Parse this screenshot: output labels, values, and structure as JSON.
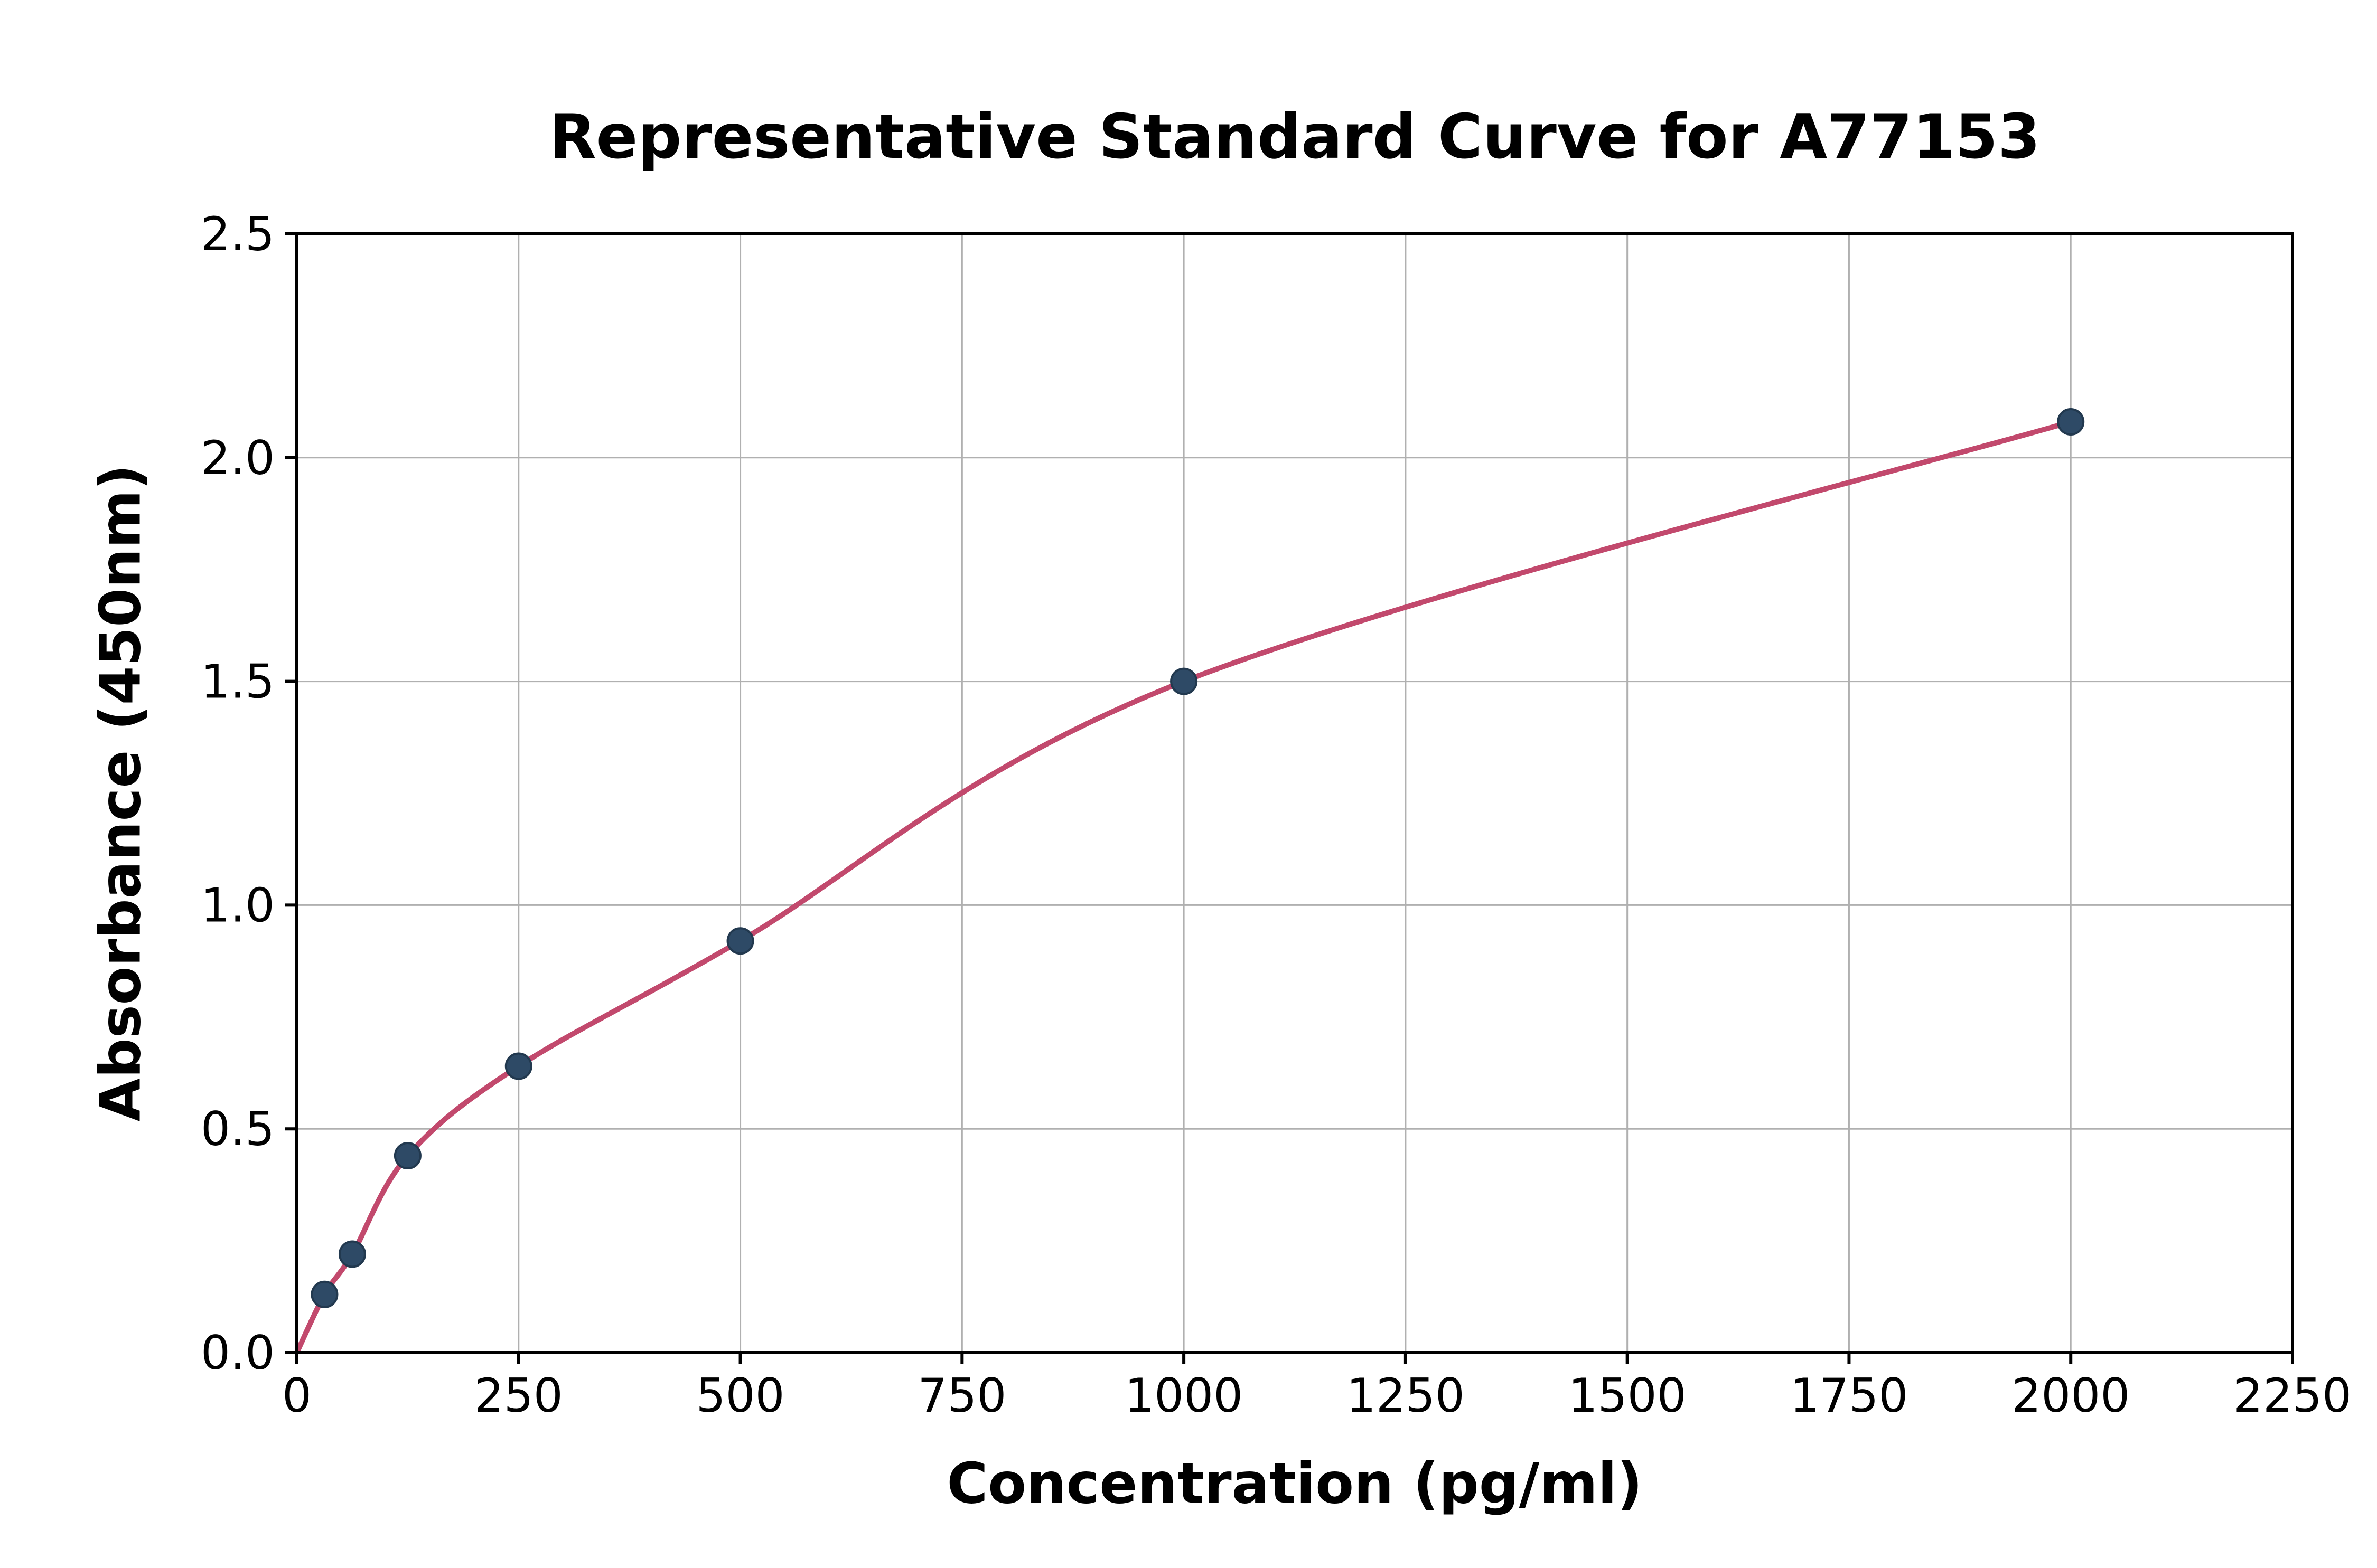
{
  "chart_data": {
    "type": "scatter",
    "title": "Representative Standard Curve for A77153",
    "xlabel": "Concentration (pg/ml)",
    "ylabel": "Absorbance (450nm)",
    "xlim": [
      0,
      2250
    ],
    "ylim": [
      0,
      2.5
    ],
    "x_ticks": [
      0,
      250,
      500,
      750,
      1000,
      1250,
      1500,
      1750,
      2000,
      2250
    ],
    "x_tick_labels": [
      "0",
      "250",
      "500",
      "750",
      "1000",
      "1250",
      "1500",
      "1750",
      "2000",
      "2250"
    ],
    "y_ticks": [
      0.0,
      0.5,
      1.0,
      1.5,
      2.0,
      2.5
    ],
    "y_tick_labels": [
      "0.0",
      "0.5",
      "1.0",
      "1.5",
      "2.0",
      "2.5"
    ],
    "grid": true,
    "legend": "none",
    "series": [
      {
        "name": "standard-points",
        "type": "scatter",
        "x": [
          31.25,
          62.5,
          125,
          250,
          500,
          1000,
          2000
        ],
        "y": [
          0.13,
          0.22,
          0.44,
          0.64,
          0.92,
          1.5,
          2.08
        ]
      },
      {
        "name": "fitted-curve",
        "type": "line",
        "anchor_start": [
          0,
          0
        ],
        "through_points": true
      }
    ],
    "colors": {
      "curve": "#c2496d",
      "point_fill": "#2e4a66",
      "point_edge": "#22394f",
      "grid": "#b0b0b0",
      "axis": "#000000",
      "background": "#ffffff"
    }
  }
}
